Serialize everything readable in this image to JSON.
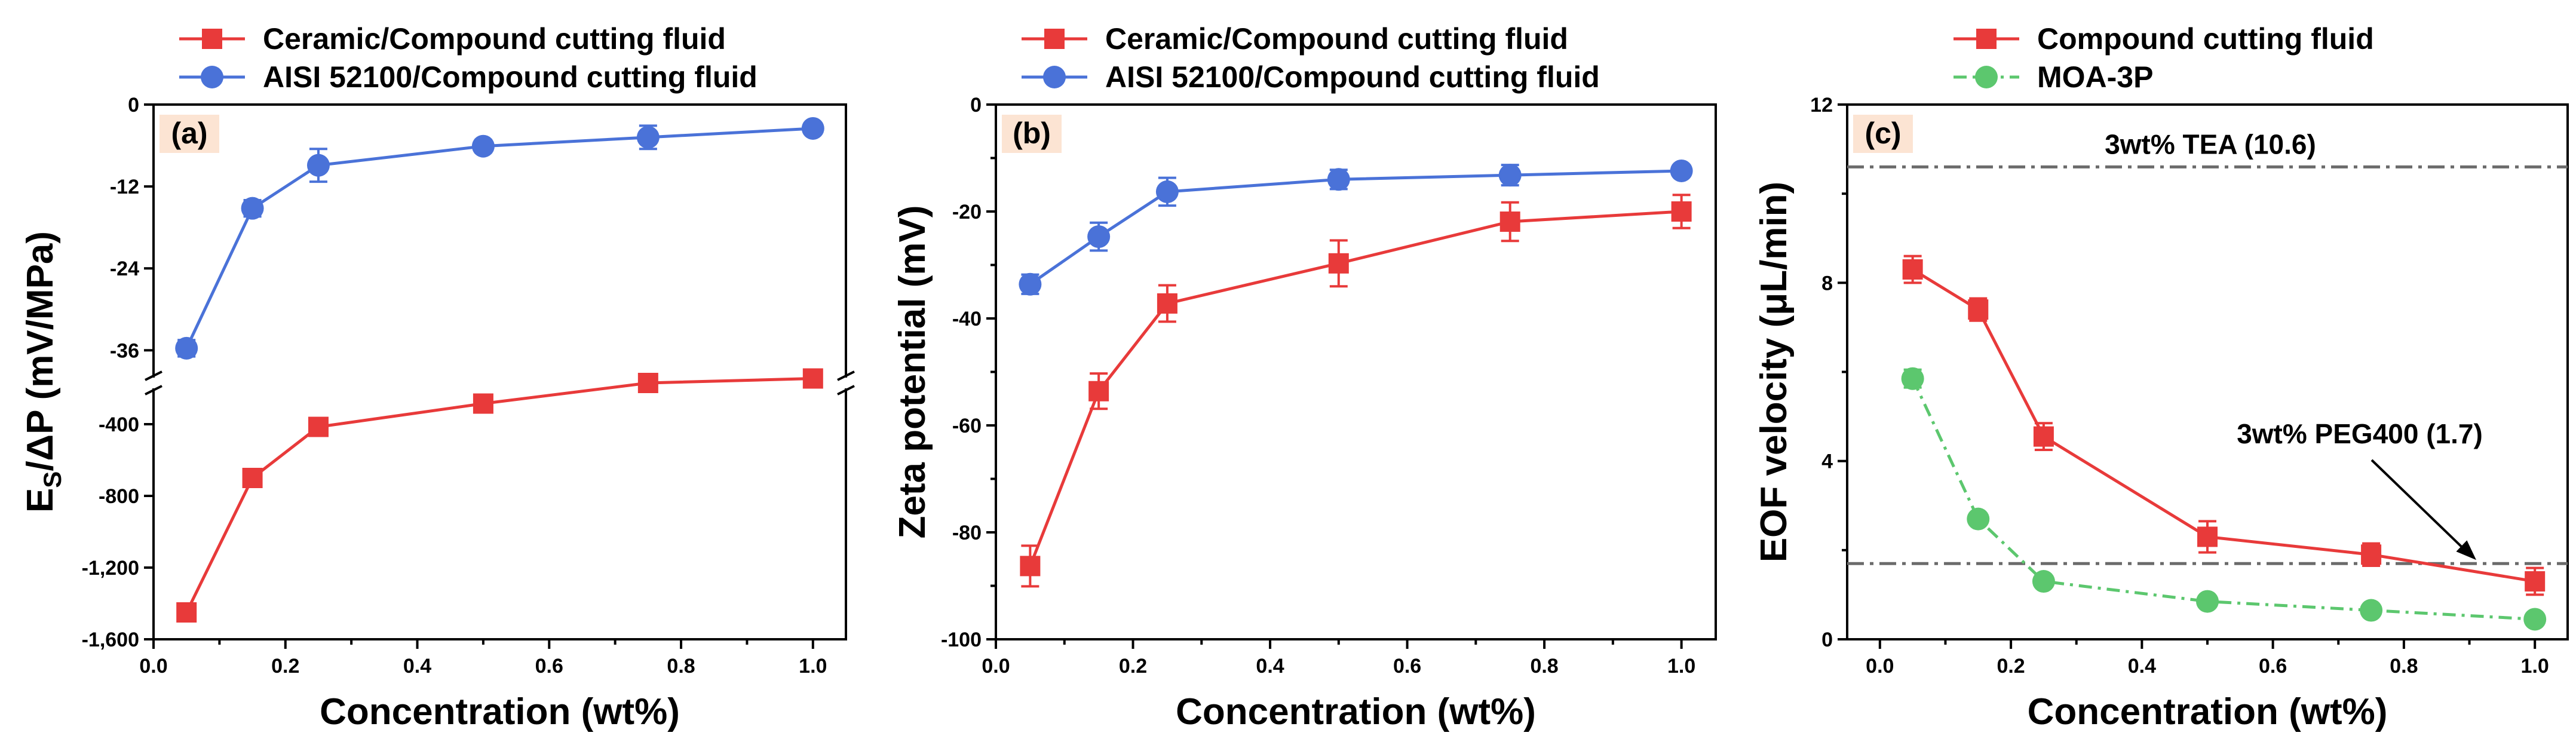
{
  "chart_data": [
    {
      "type": "line",
      "panel_label": "(a)",
      "xlabel": "Concentration (wt%)",
      "ylabel_main": "E",
      "ylabel_sub": "S",
      "ylabel_rest": "/ΔP (mV/MPa)",
      "xlim": [
        0.0,
        1.05
      ],
      "xticks": [
        0.0,
        0.2,
        0.4,
        0.6,
        0.8,
        1.0
      ],
      "xtick_labels": [
        "0.0",
        "0.2",
        "0.4",
        "0.6",
        "0.8",
        "1.0"
      ],
      "broken_axis": true,
      "upper_ylim": [
        -40,
        0
      ],
      "upper_yticks": [
        0,
        -12,
        -24,
        -36
      ],
      "upper_ytick_labels": [
        "0",
        "-12",
        "-24",
        "-36"
      ],
      "lower_ylim": [
        -1600,
        -200
      ],
      "lower_yticks": [
        -400,
        -800,
        -1200,
        -1600
      ],
      "lower_ytick_labels": [
        "-400",
        "-800",
        "-1,200",
        "-1,600"
      ],
      "legend_position": "top",
      "series": [
        {
          "name": "Ceramic/Compound cutting fluid",
          "color": "#e83a3a",
          "marker": "square",
          "segment": "lower",
          "x": [
            0.05,
            0.15,
            0.25,
            0.5,
            0.75,
            1.0
          ],
          "y": [
            -1450,
            -700,
            -415,
            -285,
            -170,
            -145
          ],
          "err": [
            20,
            20,
            15,
            15,
            15,
            10
          ]
        },
        {
          "name": "AISI 52100/Compound cutting fluid",
          "color": "#4a72d8",
          "marker": "circle",
          "segment": "upper",
          "x": [
            0.05,
            0.15,
            0.25,
            0.5,
            0.75,
            1.0
          ],
          "y": [
            -35.7,
            -15.2,
            -8.9,
            -6.1,
            -4.8,
            -3.5
          ],
          "err": [
            1.2,
            1.2,
            2.4,
            0.9,
            1.7,
            0.8
          ]
        }
      ]
    },
    {
      "type": "line",
      "panel_label": "(b)",
      "xlabel": "Concentration (wt%)",
      "ylabel": "Zeta potential (mV)",
      "xlim": [
        0.0,
        1.05
      ],
      "xticks": [
        0.0,
        0.2,
        0.4,
        0.6,
        0.8,
        1.0
      ],
      "xtick_labels": [
        "0.0",
        "0.2",
        "0.4",
        "0.6",
        "0.8",
        "1.0"
      ],
      "ylim": [
        -100,
        0
      ],
      "yticks": [
        0,
        -20,
        -40,
        -60,
        -80,
        -100
      ],
      "ytick_labels": [
        "0",
        "-20",
        "-40",
        "-60",
        "-80",
        "-100"
      ],
      "legend_position": "top",
      "series": [
        {
          "name": "Ceramic/Compound cutting fluid",
          "color": "#e83a3a",
          "marker": "square",
          "x": [
            0.05,
            0.15,
            0.25,
            0.5,
            0.75,
            1.0
          ],
          "y": [
            -86.3,
            -53.6,
            -37.2,
            -29.7,
            -21.9,
            -20.0
          ],
          "err": [
            3.8,
            3.3,
            3.4,
            4.3,
            3.6,
            3.1
          ]
        },
        {
          "name": "AISI 52100/Compound cutting fluid",
          "color": "#4a72d8",
          "marker": "circle",
          "x": [
            0.05,
            0.15,
            0.25,
            0.5,
            0.75,
            1.0
          ],
          "y": [
            -33.6,
            -24.7,
            -16.3,
            -14.0,
            -13.2,
            -12.4
          ],
          "err": [
            1.8,
            2.6,
            2.6,
            1.8,
            1.9,
            1.0
          ]
        }
      ]
    },
    {
      "type": "line",
      "panel_label": "(c)",
      "xlabel": "Concentration (wt%)",
      "ylabel": "EOF velocity (μL/min)",
      "xlim": [
        -0.05,
        1.05
      ],
      "xticks": [
        0.0,
        0.2,
        0.4,
        0.6,
        0.8,
        1.0
      ],
      "xtick_labels": [
        "0.0",
        "0.2",
        "0.4",
        "0.6",
        "0.8",
        "1.0"
      ],
      "ylim": [
        0,
        12
      ],
      "yticks": [
        0,
        4,
        8,
        12
      ],
      "ytick_labels": [
        "0",
        "4",
        "8",
        "12"
      ],
      "legend_position": "top",
      "reference_lines": [
        {
          "label": "3wt% TEA (10.6)",
          "value": 10.6
        },
        {
          "label": "3wt% PEG400 (1.7)",
          "value": 1.7
        }
      ],
      "series": [
        {
          "name": "Compound cutting fluid",
          "color": "#e83a3a",
          "marker": "square",
          "line_style": "solid",
          "x": [
            0.05,
            0.15,
            0.25,
            0.5,
            0.75,
            1.0
          ],
          "y": [
            8.3,
            7.4,
            4.55,
            2.3,
            1.9,
            1.3
          ],
          "err": [
            0.3,
            0.25,
            0.3,
            0.35,
            0.25,
            0.3
          ]
        },
        {
          "name": "MOA-3P",
          "color": "#5cc76e",
          "marker": "circle",
          "line_style": "dash-dot",
          "x": [
            0.05,
            0.15,
            0.25,
            0.5,
            0.75,
            1.0
          ],
          "y": [
            5.85,
            2.7,
            1.3,
            0.85,
            0.65,
            0.45
          ],
          "err": [
            0.2,
            0.1,
            0.1,
            0.05,
            0.05,
            0.05
          ]
        }
      ]
    }
  ]
}
